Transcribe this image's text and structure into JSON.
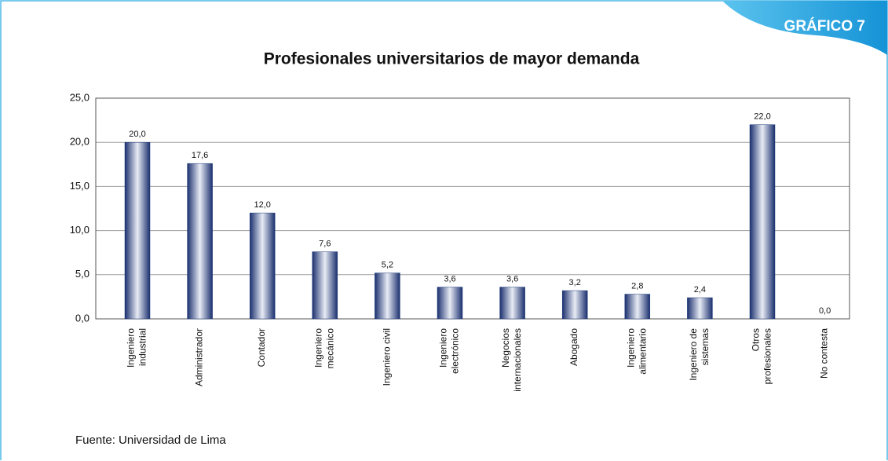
{
  "badge": "GRÁFICO 7",
  "source": "Fuente: Universidad de Lima",
  "chart_data": {
    "type": "bar",
    "title": "Profesionales universitarios de mayor demanda",
    "categories": [
      "Ingeniero\nindustrial",
      "Administrador",
      "Contador",
      "Ingeniero\nmecánico",
      "Ingeniero civil",
      "Ingeniero\nelectrónico",
      "Negocios\ninternacionales",
      "Abogado",
      "Ingeniero\nalimentario",
      "Ingeniero de\nsistemas",
      "Otros\nprofesionales",
      "No contesta"
    ],
    "values": [
      20.0,
      17.6,
      12.0,
      7.6,
      5.2,
      3.6,
      3.6,
      3.2,
      2.8,
      2.4,
      22.0,
      0.0
    ],
    "value_labels": [
      "20,0",
      "17,6",
      "12,0",
      "7,6",
      "5,2",
      "3,6",
      "3,6",
      "3,2",
      "2,8",
      "2,4",
      "22,0",
      "0,0"
    ],
    "color": "#1f3a7a",
    "ylim": [
      0,
      25
    ],
    "yticks": [
      {
        "value": 0,
        "label": "0,0"
      },
      {
        "value": 5,
        "label": "5,0"
      },
      {
        "value": 10,
        "label": "10,0"
      },
      {
        "value": 15,
        "label": "15,0"
      },
      {
        "value": 20,
        "label": "20,0"
      },
      {
        "value": 25,
        "label": "25,0"
      }
    ],
    "grid": true
  }
}
